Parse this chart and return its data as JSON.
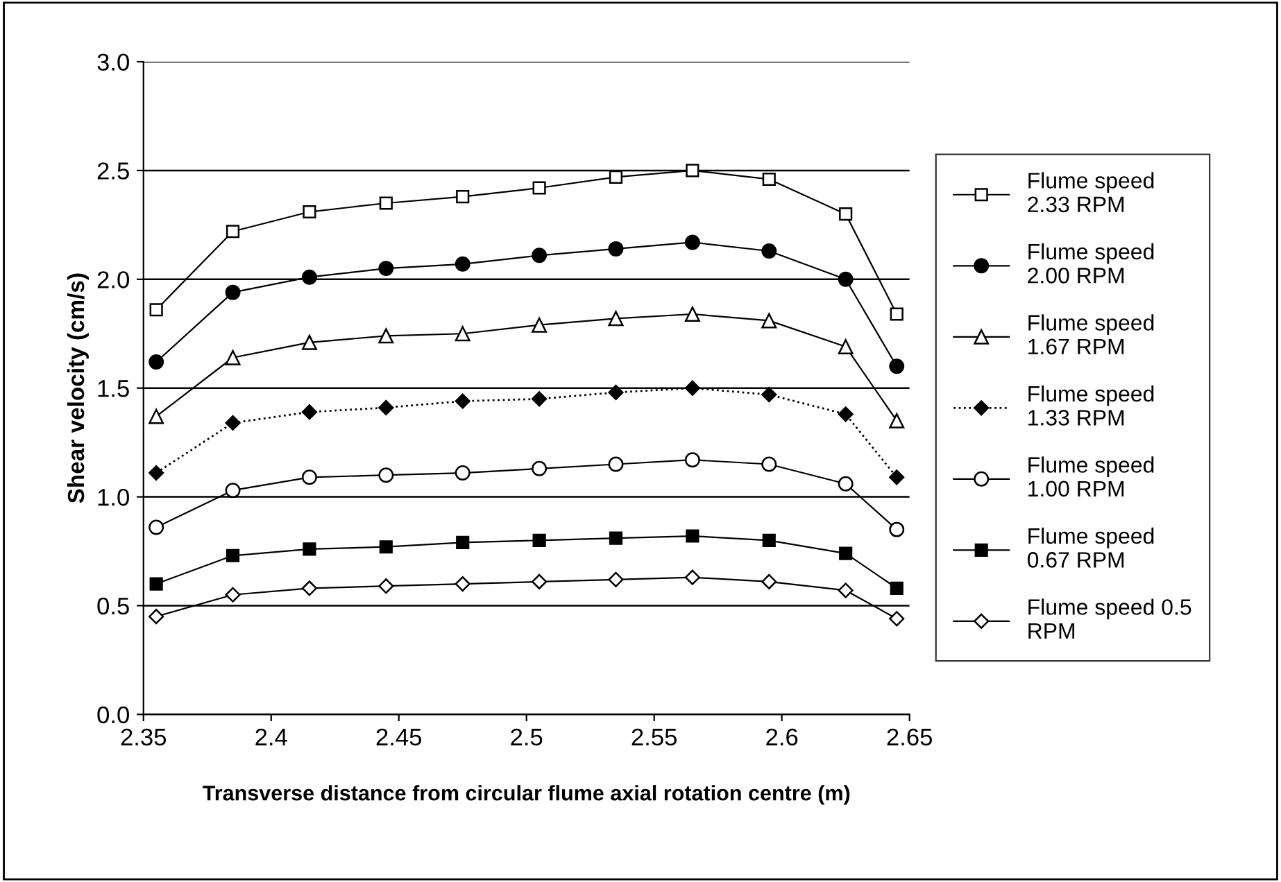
{
  "chart_data": {
    "type": "line",
    "xlabel": "Transverse distance from circular flume axial rotation centre (m)",
    "ylabel": "Shear velocity (cm/s)",
    "x": [
      2.355,
      2.385,
      2.415,
      2.445,
      2.475,
      2.505,
      2.535,
      2.565,
      2.595,
      2.625,
      2.645
    ],
    "xlim": [
      2.35,
      2.65
    ],
    "xticks": [
      2.35,
      2.4,
      2.45,
      2.5,
      2.55,
      2.6,
      2.65
    ],
    "ylim": [
      0,
      3
    ],
    "yticks": [
      {
        "value": 0,
        "label": "0.0"
      },
      0.5,
      {
        "value": 1,
        "label": "1.0"
      },
      1.5,
      {
        "value": 2,
        "label": "2.0"
      },
      2.5,
      {
        "value": 3,
        "label": "3.0"
      }
    ],
    "grid": "y",
    "legend": "right",
    "series": [
      {
        "name": "Flume speed\n2.33 RPM",
        "color": "#000000",
        "marker": "square",
        "line_style": "solid",
        "values": [
          1.86,
          2.22,
          2.31,
          2.35,
          2.38,
          2.42,
          2.47,
          2.5,
          2.46,
          2.3,
          1.84
        ]
      },
      {
        "name": "Flume speed\n2.00 RPM",
        "color": "#000000",
        "marker": "circle",
        "line_style": "solid",
        "values": [
          1.62,
          1.94,
          2.01,
          2.05,
          2.07,
          2.11,
          2.14,
          2.17,
          2.13,
          2.0,
          1.6
        ]
      },
      {
        "name": "Flume speed\n1.67 RPM",
        "color": "#000000",
        "marker": "triangle",
        "line_style": "solid",
        "values": [
          1.37,
          1.64,
          1.71,
          1.74,
          1.75,
          1.79,
          1.82,
          1.84,
          1.81,
          1.69,
          1.35
        ]
      },
      {
        "name": "Flume speed\n1.33 RPM",
        "color": "#000000",
        "marker": "diamond",
        "line_style": "dotted",
        "values": [
          1.11,
          1.34,
          1.39,
          1.41,
          1.44,
          1.45,
          1.48,
          1.5,
          1.47,
          1.38,
          1.09
        ]
      },
      {
        "name": "Flume speed\n1.00 RPM",
        "color": "#000000",
        "marker": "circle",
        "line_style": "solid",
        "values": [
          0.86,
          1.03,
          1.09,
          1.1,
          1.11,
          1.13,
          1.15,
          1.17,
          1.15,
          1.06,
          0.85
        ]
      },
      {
        "name": "Flume speed\n0.67 RPM",
        "color": "#000000",
        "marker": "square",
        "line_style": "solid",
        "values": [
          0.6,
          0.73,
          0.76,
          0.77,
          0.79,
          0.8,
          0.81,
          0.82,
          0.8,
          0.74,
          0.58
        ]
      },
      {
        "name": "Flume speed 0.5\nRPM",
        "color": "#000000",
        "marker": "diamond",
        "line_style": "solid",
        "values": [
          0.45,
          0.55,
          0.58,
          0.59,
          0.6,
          0.61,
          0.62,
          0.63,
          0.61,
          0.57,
          0.44
        ]
      }
    ]
  }
}
